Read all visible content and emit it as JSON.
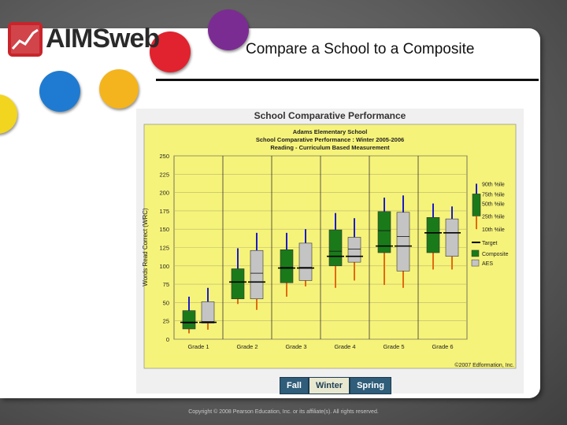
{
  "slide": {
    "logo_text": "AIMSweb",
    "title": "Compare a School to a Composite",
    "copyright": "Copyright © 2008 Pearson Education, Inc. or its affiliate(s). All rights reserved.",
    "season_buttons": [
      "Fall",
      "Winter",
      "Spring"
    ],
    "active_season": "Winter"
  },
  "colors": {
    "composite": "#1a7a1a",
    "school": "#c4c4c4",
    "whisker_high": "#1c1cc8",
    "whisker_low": "#e06b10",
    "plot_bg": "#f6f37a"
  },
  "chart_data": {
    "type": "box",
    "header": "School Comparative Performance",
    "subtitle_lines": [
      "Adams Elementary School",
      "School Comparative Performance : Winter 2005-2006",
      "Reading - Curriculum Based Measurement"
    ],
    "ylabel": "Words Read Correct (WRC)",
    "ylim": [
      0,
      250
    ],
    "yticks": [
      0,
      25,
      50,
      75,
      100,
      125,
      150,
      175,
      200,
      225,
      250
    ],
    "categories": [
      "Grade 1",
      "Grade 2",
      "Grade 3",
      "Grade 4",
      "Grade 5",
      "Grade 6"
    ],
    "legend": [
      "90th %ile",
      "75th %ile",
      "50th %ile",
      "25th %ile",
      "10th %ile",
      "Target",
      "Composite",
      "AES"
    ],
    "credit": "©2007 Edformation, Inc.",
    "series": [
      {
        "name": "Composite",
        "p10": [
          8,
          48,
          58,
          70,
          74,
          95
        ],
        "p25": [
          14,
          55,
          77,
          100,
          118,
          118
        ],
        "p50": [
          22,
          78,
          98,
          120,
          148,
          145
        ],
        "p75": [
          39,
          96,
          122,
          149,
          174,
          166
        ],
        "p90": [
          58,
          124,
          145,
          172,
          193,
          185
        ],
        "target": [
          23,
          78,
          97,
          113,
          127,
          145
        ]
      },
      {
        "name": "AES",
        "p10": [
          13,
          40,
          72,
          80,
          70,
          95
        ],
        "p25": [
          22,
          55,
          80,
          105,
          93,
          113
        ],
        "p50": [
          24,
          90,
          98,
          123,
          140,
          145
        ],
        "p75": [
          51,
          121,
          131,
          139,
          173,
          164
        ],
        "p90": [
          70,
          145,
          150,
          165,
          196,
          181
        ],
        "target": [
          23,
          78,
          97,
          113,
          127,
          145
        ]
      }
    ]
  }
}
